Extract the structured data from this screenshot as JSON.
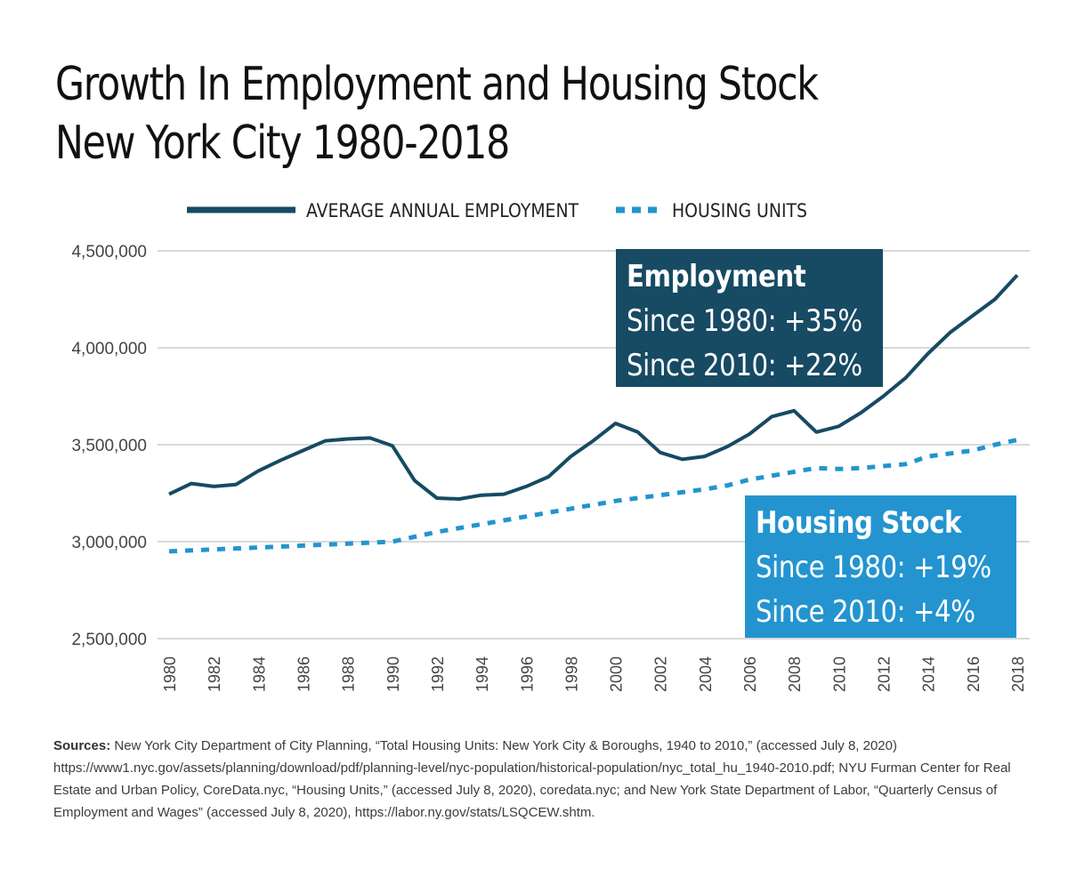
{
  "title": {
    "line1": "Growth In Employment and Housing Stock",
    "line2": "New York City 1980-2018"
  },
  "colors": {
    "employment": "#174a63",
    "housing": "#2394cf",
    "grid": "#d9d9d9",
    "axis_text": "#444444"
  },
  "callouts": {
    "employment": {
      "heading": "Employment",
      "since_1980": "Since 1980: +35%",
      "since_2010": "Since 2010: +22%"
    },
    "housing": {
      "heading": "Housing Stock",
      "since_1980": "Since 1980: +19%",
      "since_2010": "Since 2010: +4%"
    }
  },
  "sources": {
    "label": "Sources:",
    "text": "New York City Department of City Planning, “Total Housing Units: New York City & Boroughs, 1940 to 2010,” (accessed July 8, 2020) https://www1.nyc.gov/assets/planning/download/pdf/planning-level/nyc-population/historical-population/nyc_total_hu_1940-2010.pdf; NYU Furman Center for Real Estate and Urban Policy, CoreData.nyc, “Housing Units,” (accessed July 8, 2020), coredata.nyc; and New York State Department of Labor, “Quarterly Census of Employment and Wages” (accessed July 8, 2020), https://labor.ny.gov/stats/LSQCEW.shtm."
  },
  "chart_data": {
    "type": "line",
    "title": "Growth In Employment and Housing Stock New York City 1980-2018",
    "xlabel": "",
    "ylabel": "",
    "ylim": [
      2500000,
      4500000
    ],
    "yticks": [
      2500000,
      3000000,
      3500000,
      4000000,
      4500000
    ],
    "ytick_labels": [
      "2,500,000",
      "3,000,000",
      "3,500,000",
      "4,000,000",
      "4,500,000"
    ],
    "x": [
      1980,
      1981,
      1982,
      1983,
      1984,
      1985,
      1986,
      1987,
      1988,
      1989,
      1990,
      1991,
      1992,
      1993,
      1994,
      1995,
      1996,
      1997,
      1998,
      1999,
      2000,
      2001,
      2002,
      2003,
      2004,
      2005,
      2006,
      2007,
      2008,
      2009,
      2010,
      2011,
      2012,
      2013,
      2014,
      2015,
      2016,
      2017,
      2018
    ],
    "xtick_labels": [
      "1980",
      "1982",
      "1984",
      "1986",
      "1988",
      "1990",
      "1992",
      "1994",
      "1996",
      "1998",
      "2000",
      "2002",
      "2004",
      "2006",
      "2008",
      "2010",
      "2012",
      "2014",
      "2016",
      "2018"
    ],
    "grid": true,
    "legend_position": "top",
    "series": [
      {
        "name": "AVERAGE ANNUAL EMPLOYMENT",
        "style": "solid",
        "values": [
          3245000,
          3300000,
          3285000,
          3295000,
          3365000,
          3420000,
          3470000,
          3520000,
          3530000,
          3535000,
          3495000,
          3315000,
          3225000,
          3220000,
          3240000,
          3245000,
          3285000,
          3335000,
          3440000,
          3520000,
          3610000,
          3565000,
          3460000,
          3425000,
          3440000,
          3490000,
          3555000,
          3645000,
          3675000,
          3565000,
          3595000,
          3665000,
          3750000,
          3845000,
          3970000,
          4080000,
          4165000,
          4250000,
          4375000
        ]
      },
      {
        "name": "HOUSING UNITS",
        "style": "dashed",
        "values": [
          2950000,
          2955000,
          2960000,
          2965000,
          2970000,
          2975000,
          2980000,
          2985000,
          2990000,
          2995000,
          3000000,
          3025000,
          3050000,
          3070000,
          3090000,
          3110000,
          3130000,
          3150000,
          3170000,
          3190000,
          3210000,
          3225000,
          3240000,
          3255000,
          3270000,
          3290000,
          3320000,
          3340000,
          3360000,
          3380000,
          3375000,
          3380000,
          3390000,
          3400000,
          3440000,
          3455000,
          3470000,
          3500000,
          3525000
        ]
      }
    ]
  }
}
